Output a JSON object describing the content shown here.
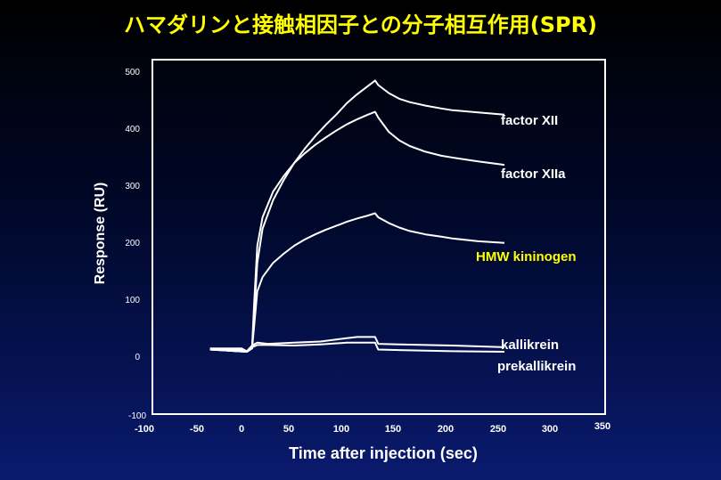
{
  "chart_data": {
    "type": "line",
    "title": "ハマダリンと接触相因子との分子相互作用(SPR)",
    "xlabel": "Time after injection (sec)",
    "ylabel": "Response (RU)",
    "xlim": [
      -100,
      350
    ],
    "ylim": [
      -100,
      520
    ],
    "x_ticks": [
      "-100",
      "-50",
      "0",
      "50",
      "100",
      "150",
      "200",
      "250",
      "300",
      "350"
    ],
    "y_ticks": [
      "-100",
      "0",
      "100",
      "200",
      "300",
      "400",
      "500"
    ],
    "grid": false,
    "series": [
      {
        "name": "factor XII",
        "color": "#ffffff",
        "x": [
          10,
          12,
          15,
          20,
          30,
          40,
          50,
          60,
          70,
          80,
          90,
          100,
          110,
          120,
          127,
          130,
          140,
          150,
          160,
          175,
          190,
          200,
          225,
          250
        ],
        "y": [
          20,
          80,
          170,
          230,
          280,
          315,
          345,
          370,
          392,
          412,
          430,
          450,
          466,
          480,
          490,
          482,
          468,
          458,
          452,
          446,
          441,
          438,
          434,
          430
        ]
      },
      {
        "name": "factor XIIa",
        "color": "#ffffff",
        "x": [
          10,
          12,
          15,
          20,
          30,
          40,
          50,
          60,
          70,
          80,
          90,
          100,
          110,
          120,
          127,
          130,
          140,
          150,
          160,
          175,
          190,
          200,
          225,
          250
        ],
        "y": [
          20,
          100,
          200,
          250,
          295,
          322,
          345,
          362,
          377,
          390,
          402,
          413,
          422,
          430,
          435,
          425,
          400,
          385,
          375,
          365,
          358,
          355,
          348,
          342
        ]
      },
      {
        "name": "HMW kininogen",
        "color": "#ffffff",
        "x": [
          10,
          12,
          15,
          20,
          30,
          40,
          50,
          60,
          70,
          80,
          90,
          100,
          110,
          120,
          127,
          130,
          140,
          150,
          160,
          175,
          190,
          200,
          225,
          250
        ],
        "y": [
          20,
          60,
          120,
          145,
          170,
          186,
          200,
          211,
          220,
          228,
          235,
          242,
          248,
          253,
          257,
          250,
          240,
          232,
          226,
          220,
          216,
          213,
          208,
          205
        ]
      },
      {
        "name": "kallikrein",
        "color": "#ffffff",
        "x": [
          -30,
          0,
          5,
          10,
          15,
          25,
          50,
          75,
          100,
          110,
          127,
          130,
          150,
          200,
          250
        ],
        "y": [
          20,
          20,
          15,
          25,
          30,
          28,
          30,
          32,
          38,
          40,
          40,
          28,
          27,
          25,
          22
        ]
      },
      {
        "name": "prekallikrein",
        "color": "#ffffff",
        "x": [
          -30,
          0,
          5,
          10,
          15,
          25,
          50,
          75,
          100,
          127,
          130,
          150,
          200,
          250
        ],
        "y": [
          18,
          18,
          14,
          22,
          26,
          26,
          25,
          27,
          30,
          30,
          18,
          17,
          15,
          14
        ]
      }
    ],
    "legend_labels": [
      {
        "text": "factor XII",
        "color": "#ffffff"
      },
      {
        "text": "factor XIIa",
        "color": "#ffffff"
      },
      {
        "text": "HMW kininogen",
        "color": "#ffff00"
      },
      {
        "text": "kallikrein",
        "color": "#ffffff"
      },
      {
        "text": "prekallikrein",
        "color": "#ffffff"
      }
    ]
  }
}
